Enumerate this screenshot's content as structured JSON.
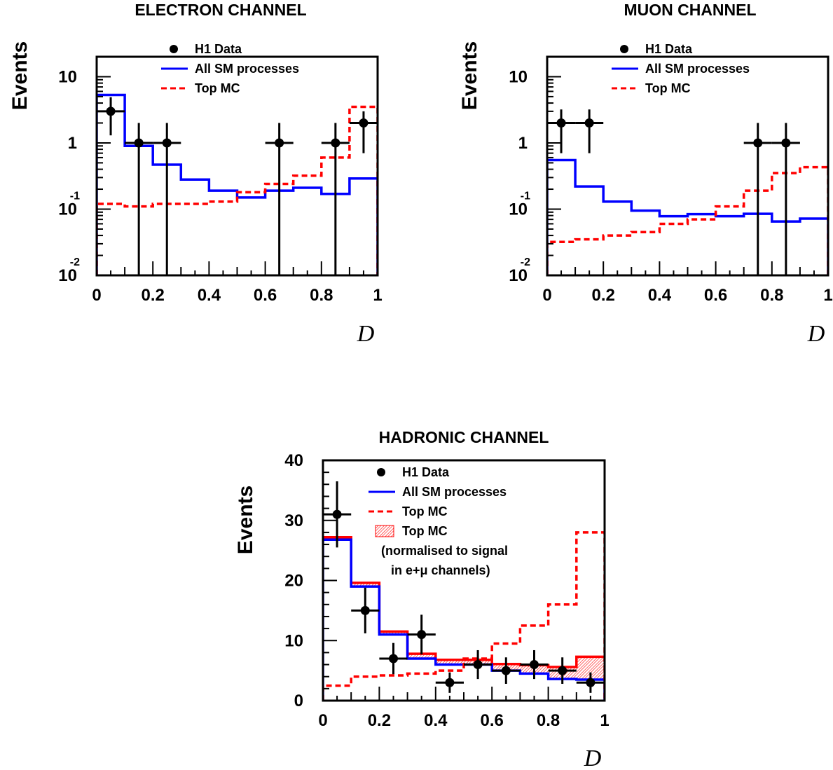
{
  "colors": {
    "data": "#000000",
    "sm": "#0000ff",
    "top": "#ff0000",
    "frame": "#000000"
  },
  "chart_data": [
    {
      "type": "line",
      "title": "ELECTRON CHANNEL",
      "xlabel": "D",
      "ylabel": "Events",
      "xlim": [
        0,
        1
      ],
      "ylim": [
        0.01,
        20
      ],
      "yscale": "log",
      "xticks": [
        "0",
        "0.2",
        "0.4",
        "0.6",
        "0.8",
        "1"
      ],
      "yticks": [
        {
          "base": "10",
          "exp": "-2",
          "value": 0.01
        },
        {
          "base": "10",
          "exp": "-1",
          "value": 0.1
        },
        {
          "base": "1",
          "exp": "",
          "value": 1
        },
        {
          "base": "10",
          "exp": "",
          "value": 10
        }
      ],
      "legend": {
        "position": "top-center",
        "entries": [
          "H1 Data",
          "All SM processes",
          "Top MC"
        ]
      },
      "bin_edges": [
        0,
        0.1,
        0.2,
        0.3,
        0.4,
        0.5,
        0.6,
        0.7,
        0.8,
        0.9,
        1.0
      ],
      "series": [
        {
          "name": "All SM processes",
          "style": "solid",
          "values": [
            5.3,
            0.9,
            0.47,
            0.28,
            0.19,
            0.15,
            0.19,
            0.21,
            0.17,
            0.29
          ]
        },
        {
          "name": "Top MC",
          "style": "dashed",
          "values": [
            0.12,
            0.11,
            0.12,
            0.12,
            0.13,
            0.18,
            0.24,
            0.32,
            0.6,
            3.5
          ]
        }
      ],
      "data_points": {
        "name": "H1 Data",
        "x": [
          0.05,
          0.15,
          0.25,
          0.65,
          0.85,
          0.95
        ],
        "y": [
          3,
          1,
          1,
          1,
          1,
          2
        ],
        "yerr_lo": [
          1.7,
          0.99,
          0.99,
          0.99,
          0.99,
          1.3
        ],
        "yerr_hi": [
          1.9,
          1.0,
          1.0,
          1.0,
          1.0,
          1.0
        ],
        "xerr": 0.05
      }
    },
    {
      "type": "line",
      "title": "MUON CHANNEL",
      "xlabel": "D",
      "ylabel": "Events",
      "xlim": [
        0,
        1
      ],
      "ylim": [
        0.01,
        20
      ],
      "yscale": "log",
      "xticks": [
        "0",
        "0.2",
        "0.4",
        "0.6",
        "0.8",
        "1"
      ],
      "yticks": [
        {
          "base": "10",
          "exp": "-2",
          "value": 0.01
        },
        {
          "base": "10",
          "exp": "-1",
          "value": 0.1
        },
        {
          "base": "1",
          "exp": "",
          "value": 1
        },
        {
          "base": "10",
          "exp": "",
          "value": 10
        }
      ],
      "legend": {
        "position": "top-center",
        "entries": [
          "H1 Data",
          "All SM processes",
          "Top MC"
        ]
      },
      "bin_edges": [
        0,
        0.1,
        0.2,
        0.3,
        0.4,
        0.5,
        0.6,
        0.7,
        0.8,
        0.9,
        1.0
      ],
      "series": [
        {
          "name": "All SM processes",
          "style": "solid",
          "values": [
            0.55,
            0.22,
            0.13,
            0.095,
            0.078,
            0.084,
            0.078,
            0.085,
            0.065,
            0.072
          ]
        },
        {
          "name": "Top MC",
          "style": "dashed",
          "values": [
            0.032,
            0.035,
            0.04,
            0.045,
            0.06,
            0.07,
            0.11,
            0.19,
            0.35,
            0.43
          ]
        }
      ],
      "data_points": {
        "name": "H1 Data",
        "x": [
          0.05,
          0.15,
          0.75,
          0.85
        ],
        "y": [
          2,
          2,
          1,
          1
        ],
        "yerr_lo": [
          1.3,
          1.3,
          0.99,
          0.99
        ],
        "yerr_hi": [
          1.2,
          1.2,
          1.0,
          1.0
        ],
        "xerr": 0.05
      }
    },
    {
      "type": "line",
      "title": "HADRONIC CHANNEL",
      "xlabel": "D",
      "ylabel": "Events",
      "xlim": [
        0,
        1
      ],
      "ylim": [
        0,
        40
      ],
      "yscale": "linear",
      "xticks": [
        "0",
        "0.2",
        "0.4",
        "0.6",
        "0.8",
        "1"
      ],
      "yticks": [
        {
          "base": "0",
          "exp": "",
          "value": 0
        },
        {
          "base": "10",
          "exp": "",
          "value": 10
        },
        {
          "base": "20",
          "exp": "",
          "value": 20
        },
        {
          "base": "30",
          "exp": "",
          "value": 30
        },
        {
          "base": "40",
          "exp": "",
          "value": 40
        }
      ],
      "legend": {
        "position": "top-center",
        "entries": [
          "H1 Data",
          "All SM processes",
          "Top MC",
          "Top MC",
          "(normalised to signal",
          "in e+μ channels)"
        ]
      },
      "bin_edges": [
        0,
        0.1,
        0.2,
        0.3,
        0.4,
        0.5,
        0.6,
        0.7,
        0.8,
        0.9,
        1.0
      ],
      "series": [
        {
          "name": "All SM processes",
          "style": "solid",
          "values": [
            26.8,
            19.0,
            11.0,
            7.0,
            6.0,
            6.0,
            5.0,
            4.5,
            3.6,
            3.5
          ]
        },
        {
          "name": "Top MC",
          "style": "dashed",
          "values": [
            2.5,
            4.0,
            4.2,
            4.5,
            5.0,
            7.0,
            9.5,
            12.5,
            16.0,
            28.0
          ]
        }
      ],
      "band": {
        "name": "Top MC",
        "lower": [
          26.8,
          19.0,
          11.0,
          7.0,
          6.0,
          6.0,
          5.0,
          4.5,
          3.6,
          3.5
        ],
        "upper": [
          27.2,
          19.6,
          11.5,
          7.8,
          6.8,
          6.8,
          6.1,
          5.9,
          5.6,
          7.3
        ]
      },
      "data_points": {
        "name": "H1 Data",
        "x": [
          0.05,
          0.15,
          0.25,
          0.35,
          0.45,
          0.55,
          0.65,
          0.75,
          0.85,
          0.95
        ],
        "y": [
          31,
          15,
          7,
          11,
          3,
          6,
          5,
          6,
          5,
          3
        ],
        "yerr_lo": [
          5.5,
          3.8,
          2.6,
          3.3,
          1.7,
          2.4,
          2.2,
          2.4,
          2.2,
          1.7
        ],
        "yerr_hi": [
          5.5,
          3.8,
          2.6,
          3.3,
          1.7,
          2.4,
          2.2,
          2.4,
          2.2,
          1.7
        ],
        "xerr": 0.05
      }
    }
  ]
}
